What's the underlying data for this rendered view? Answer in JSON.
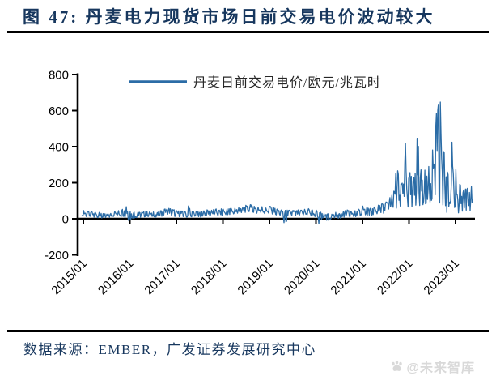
{
  "header": {
    "title": "图 47: 丹麦电力现货市场日前交易电价波动较大"
  },
  "footer": {
    "source": "数据来源：EMBER，广发证券发展研究中心",
    "watermark": "@未来智库"
  },
  "colors": {
    "title_navy": "#17375E",
    "line_blue": "#2B6CA6",
    "axis_black": "#000000",
    "watermark_gray": "#d9d9d9"
  },
  "chart_data": {
    "type": "line",
    "title": "",
    "legend": [
      "丹麦日前交易电价/欧元/兆瓦时"
    ],
    "legend_position": "top-center",
    "grid": false,
    "ylim": [
      -200,
      800
    ],
    "yticklabels": [
      "800",
      "600",
      "400",
      "200",
      "0",
      "-200"
    ],
    "xticklabels": [
      "2015/01",
      "2016/01",
      "2017/01",
      "2018/01",
      "2019/01",
      "2020/01",
      "2021/01",
      "2022/01",
      "2023/01"
    ],
    "x_monthly_start": "2015/01",
    "x_monthly_end": "2023/05",
    "unit": "欧元/兆瓦时",
    "line_color": "#2B6CA6",
    "series": [
      {
        "name": "丹麦日前交易电价/欧元/兆瓦时",
        "sampling": "monthly envelope (min/max) of daily day-ahead prices",
        "monthly_min": [
          15,
          12,
          10,
          8,
          5,
          2,
          5,
          8,
          12,
          15,
          10,
          5,
          -12,
          2,
          5,
          8,
          10,
          12,
          10,
          8,
          14,
          20,
          25,
          15,
          10,
          12,
          10,
          5,
          10,
          12,
          10,
          12,
          16,
          15,
          20,
          15,
          18,
          20,
          22,
          25,
          28,
          30,
          35,
          38,
          35,
          30,
          32,
          28,
          30,
          25,
          20,
          18,
          -25,
          15,
          15,
          15,
          16,
          18,
          20,
          14,
          8,
          -30,
          2,
          -10,
          -5,
          5,
          0,
          8,
          14,
          6,
          10,
          14,
          20,
          18,
          15,
          20,
          24,
          30,
          38,
          45,
          60,
          50,
          60,
          80,
          60,
          50,
          70,
          60,
          70,
          80,
          90,
          110,
          80,
          40,
          30,
          60,
          40,
          30,
          25,
          30,
          35
        ],
        "monthly_max": [
          48,
          42,
          40,
          38,
          35,
          30,
          28,
          32,
          40,
          46,
          52,
          70,
          45,
          40,
          38,
          40,
          42,
          42,
          40,
          38,
          45,
          55,
          62,
          55,
          50,
          46,
          44,
          75,
          45,
          42,
          40,
          44,
          50,
          48,
          55,
          52,
          55,
          58,
          62,
          60,
          62,
          65,
          75,
          78,
          70,
          65,
          68,
          64,
          72,
          62,
          56,
          54,
          58,
          52,
          50,
          50,
          52,
          55,
          58,
          52,
          48,
          40,
          32,
          28,
          30,
          36,
          32,
          42,
          50,
          44,
          48,
          55,
          70,
          66,
          64,
          70,
          76,
          85,
          100,
          125,
          160,
          300,
          200,
          450,
          260,
          250,
          450,
          280,
          300,
          310,
          380,
          600,
          700,
          380,
          260,
          440,
          300,
          200,
          170,
          190,
          200
        ]
      }
    ]
  }
}
